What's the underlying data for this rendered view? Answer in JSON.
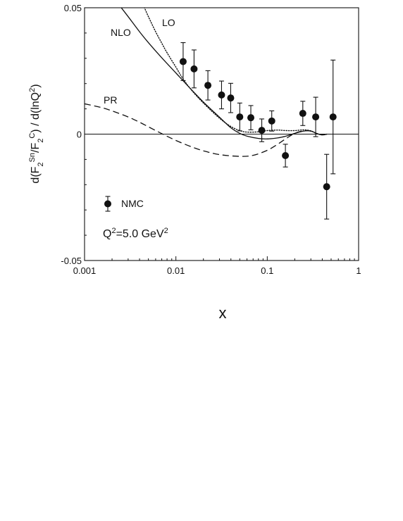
{
  "chart_data": {
    "type": "line",
    "title": "",
    "xlabel": "x",
    "ylabel": {
      "parts": [
        "d(F",
        "2",
        "Sn",
        "/F",
        "2",
        "C",
        ") / d(lnQ",
        "2",
        ")"
      ]
    },
    "xscale": "log",
    "xlim": [
      0.001,
      1
    ],
    "ylim": [
      -0.05,
      0.05
    ],
    "x_ticks": [
      0.001,
      0.01,
      0.1,
      1
    ],
    "x_tick_labels": [
      "0.001",
      "0.01",
      "0.1",
      "1"
    ],
    "y_ticks": [
      -0.05,
      0,
      0.05
    ],
    "y_tick_labels": [
      "-0.05",
      "0",
      "0.05"
    ],
    "zero_line": true,
    "annotation": {
      "parts": [
        "Q",
        "2",
        "=5.0 GeV",
        "2"
      ]
    },
    "series": [
      {
        "name": "NLO",
        "style": "solid",
        "x": [
          0.0025,
          0.003,
          0.004,
          0.005,
          0.007,
          0.01,
          0.014,
          0.02,
          0.03,
          0.04,
          0.05,
          0.06,
          0.08,
          0.1,
          0.13,
          0.16,
          0.2,
          0.25,
          0.3,
          0.35,
          0.4,
          0.45
        ],
        "y": [
          0.0502,
          0.0465,
          0.0405,
          0.0362,
          0.0302,
          0.0242,
          0.0185,
          0.0127,
          0.0067,
          0.0025,
          0.0003,
          -0.0008,
          -0.0017,
          -0.0019,
          -0.0015,
          -0.0008,
          0.0003,
          0.0012,
          0.0012,
          0.0002,
          -0.0003,
          0.0
        ]
      },
      {
        "name": "LO",
        "style": "dotted",
        "x": [
          0.0045,
          0.005,
          0.006,
          0.007,
          0.008,
          0.01,
          0.012,
          0.015,
          0.02,
          0.03,
          0.04,
          0.05,
          0.06,
          0.08,
          0.1,
          0.13,
          0.16,
          0.2,
          0.25,
          0.3,
          0.35,
          0.4,
          0.45
        ],
        "y": [
          0.0502,
          0.0465,
          0.0405,
          0.036,
          0.0322,
          0.0265,
          0.0218,
          0.0172,
          0.0123,
          0.0063,
          0.003,
          0.0014,
          0.0008,
          0.0009,
          0.0014,
          0.0016,
          0.0014,
          0.0014,
          0.0017,
          0.0013,
          0.0002,
          -0.0003,
          0.0
        ]
      },
      {
        "name": "PR",
        "style": "dashed",
        "x": [
          0.001,
          0.0015,
          0.002,
          0.003,
          0.004,
          0.005,
          0.007,
          0.01,
          0.015,
          0.02,
          0.03,
          0.05,
          0.07,
          0.1,
          0.13,
          0.16,
          0.2,
          0.25,
          0.3,
          0.35,
          0.4,
          0.45
        ],
        "y": [
          0.012,
          0.0106,
          0.0092,
          0.0068,
          0.0047,
          0.0029,
          0.0002,
          -0.0025,
          -0.0051,
          -0.0066,
          -0.0081,
          -0.0088,
          -0.0084,
          -0.0064,
          -0.004,
          -0.0018,
          0.0003,
          0.0013,
          0.0012,
          0.0002,
          -0.0003,
          0.0
        ]
      },
      {
        "name": "NMC",
        "style": "points",
        "points": [
          {
            "x": 0.012,
            "y": 0.0287,
            "err": 0.0075
          },
          {
            "x": 0.0158,
            "y": 0.0258,
            "err": 0.0075
          },
          {
            "x": 0.0224,
            "y": 0.0193,
            "err": 0.0058
          },
          {
            "x": 0.0316,
            "y": 0.0155,
            "err": 0.0055
          },
          {
            "x": 0.0398,
            "y": 0.0143,
            "err": 0.0058
          },
          {
            "x": 0.05,
            "y": 0.0068,
            "err": 0.0055
          },
          {
            "x": 0.0661,
            "y": 0.0065,
            "err": 0.0048
          },
          {
            "x": 0.0871,
            "y": 0.0015,
            "err": 0.0045
          },
          {
            "x": 0.112,
            "y": 0.0052,
            "err": 0.004
          },
          {
            "x": 0.158,
            "y": -0.0085,
            "err": 0.0045
          },
          {
            "x": 0.245,
            "y": 0.0082,
            "err": 0.0048
          },
          {
            "x": 0.339,
            "y": 0.0068,
            "err": 0.0078
          },
          {
            "x": 0.447,
            "y": -0.0208,
            "err": 0.0128
          },
          {
            "x": 0.525,
            "y": 0.0068,
            "err": 0.0225
          }
        ]
      }
    ],
    "legend": {
      "label": "NMC",
      "placement": "bottom-left"
    }
  }
}
